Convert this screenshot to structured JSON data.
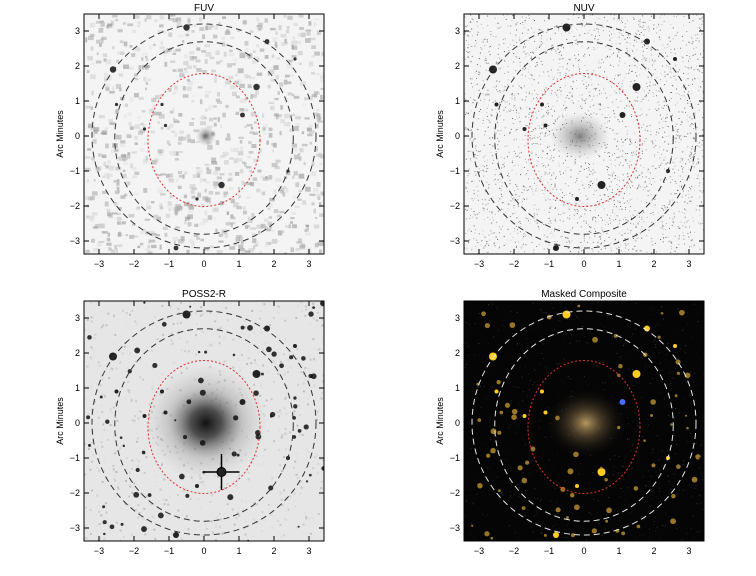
{
  "panels": [
    {
      "title": "FUV",
      "ylabel": "Arc Minutes",
      "style": "sparse",
      "x_ticks": [
        "-3",
        "-2",
        "-1",
        "0",
        "1",
        "2",
        "3"
      ],
      "y_ticks": [
        "3",
        "2",
        "1",
        "0",
        "-1",
        "-2",
        "-3"
      ]
    },
    {
      "title": "NUV",
      "ylabel": "Arc Minutes",
      "style": "noise",
      "x_ticks": [
        "-3",
        "-2",
        "-1",
        "0",
        "1",
        "2",
        "3"
      ],
      "y_ticks": [
        "3",
        "2",
        "1",
        "0",
        "-1",
        "-2",
        "-3"
      ]
    },
    {
      "title": "POSS2-R",
      "ylabel": "Arc Minutes",
      "style": "optical",
      "x_ticks": [
        "-3",
        "-2",
        "-1",
        "0",
        "1",
        "2",
        "3"
      ],
      "y_ticks": [
        "3",
        "2",
        "1",
        "0",
        "-1",
        "-2",
        "-3"
      ]
    },
    {
      "title": "Masked Composite",
      "ylabel": "Arc Minutes",
      "style": "composite",
      "x_ticks": [
        "-3",
        "-2",
        "-1",
        "0",
        "1",
        "2",
        "3"
      ],
      "y_ticks": [
        "3",
        "2",
        "1",
        "0",
        "-1",
        "-2",
        "-3"
      ]
    }
  ],
  "colors": {
    "inner_ellipse": "#e03030",
    "outer_ellipse_dark": "#333333",
    "outer_ellipse_light": "#e8e8e8",
    "composite_bg": "#050505",
    "star_yellow": "#ffcc22",
    "star_blue": "#4a6cff"
  }
}
